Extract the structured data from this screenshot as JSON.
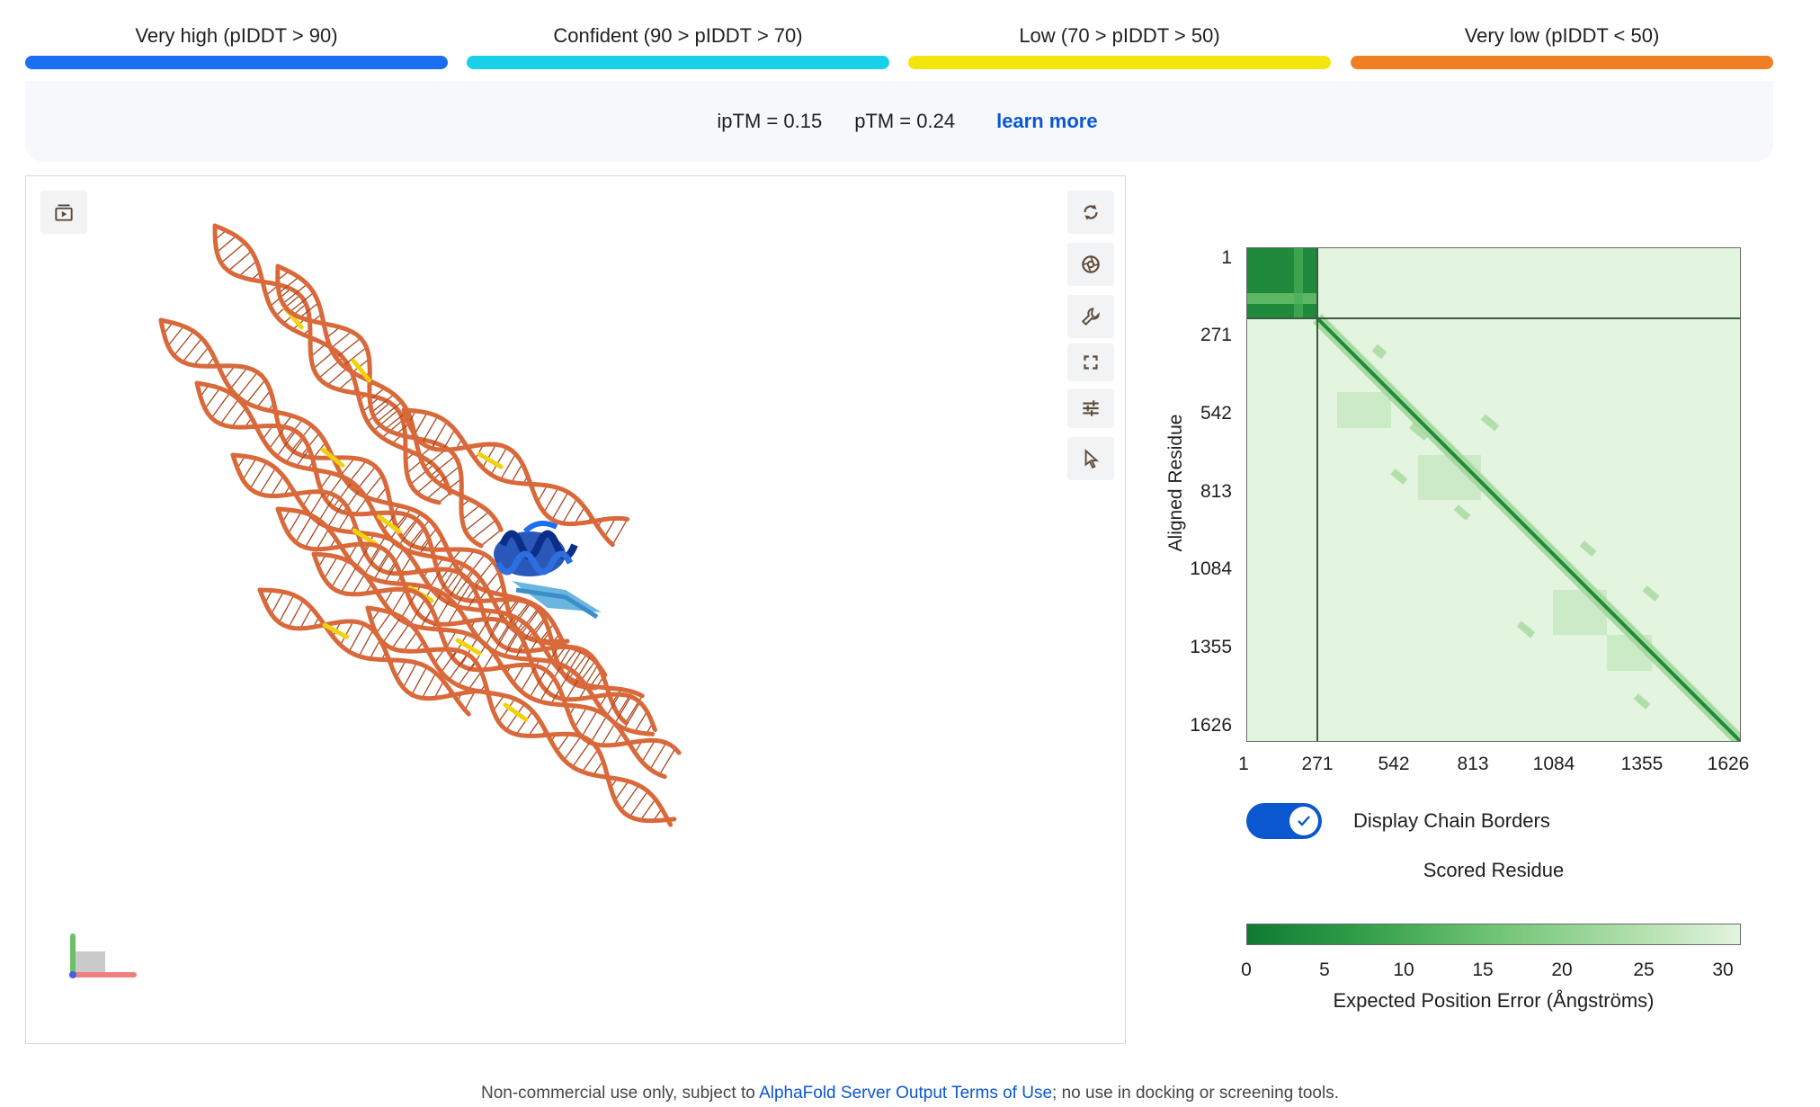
{
  "legend": [
    {
      "label": "Very high (pIDDT > 90)",
      "color": "#1a6ef0"
    },
    {
      "label": "Confident (90 > pIDDT > 70)",
      "color": "#18d0ea"
    },
    {
      "label": "Low (70 > pIDDT > 50)",
      "color": "#f5e50e"
    },
    {
      "label": "Very low (pIDDT < 50)",
      "color": "#f07f23"
    }
  ],
  "metrics": {
    "iptm": "ipTM = 0.15",
    "ptm": "pTM = 0.24",
    "learn_more": "learn more"
  },
  "viewer": {
    "tools": [
      "animation-icon",
      "rotate-icon",
      "camera-icon",
      "wrench-icon",
      "fullscreen-icon",
      "settings-sliders-icon",
      "pointer-icon"
    ]
  },
  "pae": {
    "ylabel": "Aligned Residue",
    "ticks": [
      "1",
      "271",
      "542",
      "813",
      "1084",
      "1355",
      "1626"
    ],
    "toggle_label": "Display Chain Borders",
    "toggle_on": true,
    "scored_label": "Scored Residue",
    "colorbar_ticks": [
      "0",
      "5",
      "10",
      "15",
      "20",
      "25",
      "30"
    ],
    "colorbar_label": "Expected Position Error (Ångströms)",
    "colors": {
      "low_error": "#0f7a33",
      "high_error": "#e3f4df"
    }
  },
  "footer": {
    "pre": "Non-commercial use only, subject to ",
    "link": "AlphaFold Server Output Terms of Use",
    "post": "; no use in docking or screening tools."
  }
}
